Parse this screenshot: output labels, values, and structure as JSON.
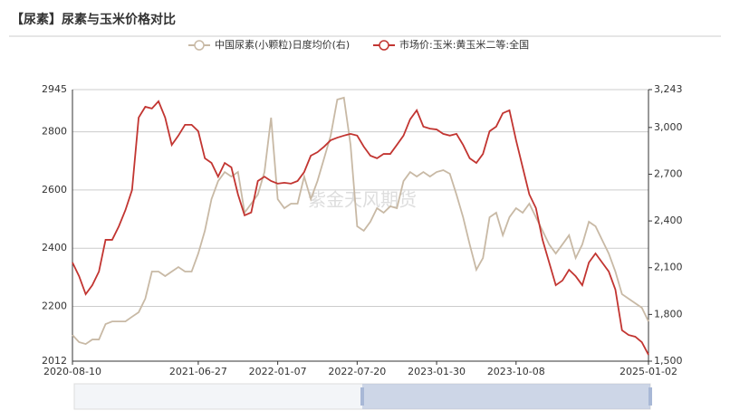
{
  "chart_data": {
    "type": "line",
    "title": "【尿素】尿素与玉米价格对比",
    "watermark": "紫金天风期货",
    "categories": [
      "2020-08-10",
      null,
      null,
      null,
      null,
      null,
      null,
      null,
      null,
      null,
      null,
      null,
      null,
      null,
      null,
      null,
      null,
      null,
      null,
      "2021-06-27",
      null,
      null,
      null,
      null,
      null,
      null,
      null,
      null,
      null,
      null,
      null,
      "2022-01-07",
      null,
      null,
      null,
      null,
      null,
      null,
      null,
      null,
      null,
      null,
      null,
      "2022-07-20",
      null,
      null,
      null,
      null,
      null,
      null,
      null,
      null,
      null,
      null,
      null,
      "2023-01-30",
      null,
      null,
      null,
      null,
      null,
      null,
      null,
      null,
      null,
      null,
      null,
      "2023-10-08",
      null,
      null,
      null,
      null,
      null,
      null,
      null,
      null,
      null,
      null,
      null,
      null,
      null,
      null,
      null,
      null,
      null,
      null,
      null,
      "2025-01-02"
    ],
    "series": [
      {
        "name": "中国尿素(小颗粒)日度均价(右)",
        "color": "#c8b9a5",
        "axis": "y2",
        "values": [
          1668,
          1622,
          1610,
          1639,
          1639,
          1738,
          1755,
          1755,
          1755,
          1785,
          1814,
          1901,
          2075,
          2075,
          2046,
          2075,
          2104,
          2075,
          2075,
          2191,
          2337,
          2540,
          2656,
          2714,
          2685,
          2714,
          2453,
          2511,
          2569,
          2714,
          3063,
          2540,
          2482,
          2511,
          2511,
          2685,
          2540,
          2656,
          2801,
          2947,
          3179,
          3191,
          2889,
          2366,
          2337,
          2395,
          2482,
          2453,
          2494,
          2482,
          2656,
          2714,
          2685,
          2714,
          2685,
          2714,
          2726,
          2703,
          2569,
          2424,
          2249,
          2087,
          2162,
          2424,
          2453,
          2308,
          2424,
          2482,
          2453,
          2511,
          2424,
          2337,
          2249,
          2191,
          2249,
          2308,
          2162,
          2249,
          2395,
          2366,
          2278,
          2191,
          2075,
          1930,
          1901,
          1872,
          1843,
          1755
        ]
      },
      {
        "name": "市场价:玉米:黄玉米二等:全国",
        "color": "#c23531",
        "values": [
          2351,
          2304,
          2242,
          2273,
          2320,
          2429,
          2429,
          2475,
          2531,
          2600,
          2849,
          2886,
          2880,
          2905,
          2849,
          2755,
          2787,
          2824,
          2824,
          2802,
          2709,
          2693,
          2646,
          2693,
          2678,
          2585,
          2513,
          2523,
          2631,
          2646,
          2631,
          2622,
          2625,
          2622,
          2631,
          2662,
          2718,
          2730,
          2749,
          2771,
          2780,
          2787,
          2793,
          2787,
          2749,
          2718,
          2709,
          2724,
          2724,
          2755,
          2787,
          2843,
          2874,
          2818,
          2811,
          2808,
          2793,
          2787,
          2793,
          2755,
          2709,
          2693,
          2724,
          2802,
          2818,
          2864,
          2874,
          2771,
          2678,
          2585,
          2538,
          2429,
          2351,
          2273,
          2289,
          2326,
          2304,
          2273,
          2351,
          2382,
          2351,
          2320,
          2258,
          2118,
          2102,
          2096,
          2077,
          2034
        ]
      }
    ],
    "ylim": [
      2012,
      2945
    ],
    "yticks": [
      2012,
      2200,
      2400,
      2600,
      2800,
      2945
    ],
    "y2lim": [
      1500,
      3243
    ],
    "y2ticks": [
      {
        "value": 1500,
        "label": "1,500"
      },
      {
        "value": 1800,
        "label": "1,800"
      },
      {
        "value": 2100,
        "label": "2,100"
      },
      {
        "value": 2400,
        "label": "2,400"
      },
      {
        "value": 2700,
        "label": "2,700"
      },
      {
        "value": 3000,
        "label": "3,000"
      },
      {
        "value": 3243,
        "label": "3,243"
      }
    ],
    "grid": true
  }
}
